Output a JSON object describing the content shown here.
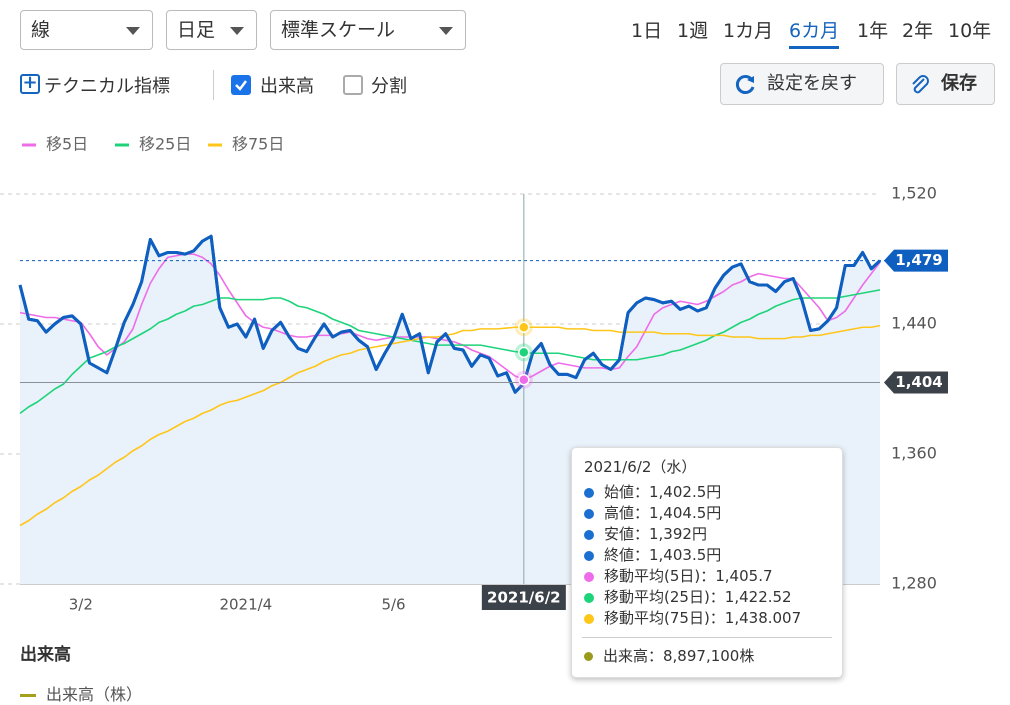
{
  "toolbar": {
    "chart_style": "線",
    "interval": "日足",
    "scale": "標準スケール",
    "periods": [
      "1日",
      "1週",
      "1カ月",
      "6カ月",
      "1年",
      "2年",
      "10年"
    ],
    "active_period": 3,
    "technical": "テクニカル指標",
    "volume_checkbox": {
      "label": "出来高",
      "checked": true
    },
    "split_checkbox": {
      "label": "分割",
      "checked": false
    },
    "reset_button": "設定を戻す",
    "save_button": "保存"
  },
  "chart_data": {
    "type": "line",
    "categories": [
      null,
      null,
      null,
      null,
      null,
      null,
      null,
      "3/2",
      null,
      null,
      null,
      null,
      null,
      null,
      null,
      null,
      null,
      null,
      null,
      null,
      null,
      null,
      null,
      null,
      null,
      null,
      "2021/4",
      null,
      null,
      null,
      null,
      null,
      null,
      null,
      null,
      null,
      null,
      null,
      null,
      null,
      null,
      null,
      null,
      "5/6",
      null,
      null,
      null,
      null,
      null,
      null,
      null,
      null,
      null,
      null,
      null,
      null,
      null,
      null,
      "2021/6/2",
      null,
      null,
      null,
      null,
      null,
      null,
      null,
      null,
      null,
      null,
      null,
      null,
      null,
      null,
      null,
      null,
      null,
      null,
      null,
      null,
      null,
      null,
      null,
      null,
      null,
      null,
      null,
      null,
      null,
      null,
      null,
      null,
      null,
      null,
      null,
      null,
      null,
      null,
      null,
      null,
      null
    ],
    "series": [
      {
        "color": "#0f5fc0",
        "area_color": "#e9f1fa",
        "values": [
          1464,
          1443,
          1442,
          1435,
          1440,
          1444,
          1445,
          1440,
          1416,
          1413,
          1410,
          1425,
          1441,
          1452,
          1466,
          1492,
          1482,
          1484,
          1484,
          1483,
          1485,
          1491,
          1494,
          1450,
          1438,
          1440,
          1432,
          1443,
          1425,
          1436,
          1441,
          1432,
          1425,
          1423,
          1432,
          1440,
          1432,
          1435,
          1436,
          1430,
          1426,
          1412,
          1422,
          1431,
          1446,
          1431,
          1434,
          1410,
          1429,
          1434,
          1425,
          1424,
          1414,
          1421,
          1419,
          1408,
          1410,
          1398,
          1403.5,
          1422,
          1428,
          1415,
          1409,
          1409,
          1407,
          1418,
          1422,
          1415,
          1412,
          1418,
          1447,
          1453,
          1456,
          1455,
          1453,
          1454,
          1449,
          1451,
          1448,
          1450,
          1462,
          1470,
          1475,
          1477,
          1466,
          1464,
          1464,
          1460,
          1466,
          1468,
          1455,
          1436,
          1437,
          1442,
          1450,
          1476,
          1476,
          1484,
          1474,
          1479
        ]
      },
      {
        "name": "移5日",
        "color": "#ee6ce9",
        "values": [
          1447,
          1446,
          1445,
          1444,
          1444,
          1443,
          1442,
          1441,
          1434,
          1426,
          1421,
          1425,
          1429,
          1437,
          1452,
          1465,
          1474,
          1481,
          1482,
          1483,
          1483,
          1481,
          1477,
          1470,
          1461,
          1453,
          1445,
          1441,
          1438,
          1437,
          1435,
          1433,
          1432,
          1432,
          1433,
          1433,
          1433,
          1434,
          1435,
          1433,
          1431,
          1430,
          1431,
          1432,
          1432,
          1432,
          1432,
          1432,
          1431,
          1430,
          1429,
          1427,
          1424,
          1422,
          1420,
          1416,
          1412,
          1408,
          1405.7,
          1408,
          1411,
          1414,
          1416,
          1415,
          1414,
          1413,
          1413,
          1413,
          1412,
          1413,
          1420,
          1426,
          1436,
          1446,
          1450,
          1452,
          1454,
          1453,
          1452,
          1454,
          1457,
          1460,
          1464,
          1466,
          1469,
          1471,
          1470,
          1469,
          1468,
          1468,
          1462,
          1456,
          1450,
          1442,
          1444,
          1448,
          1456,
          1464,
          1471,
          1478
        ]
      },
      {
        "name": "移25日",
        "color": "#1ed47a",
        "values": [
          1385,
          1389,
          1392,
          1396,
          1400,
          1403,
          1409,
          1414,
          1419,
          1421,
          1423,
          1426,
          1428,
          1431,
          1434,
          1437,
          1441,
          1443,
          1446,
          1448,
          1451,
          1452,
          1454,
          1456,
          1456,
          1455,
          1455,
          1455,
          1455,
          1456,
          1456,
          1454,
          1451,
          1450,
          1448,
          1446,
          1443,
          1441,
          1439,
          1436,
          1435,
          1434,
          1433,
          1432,
          1431,
          1430,
          1429,
          1428,
          1427,
          1427,
          1427,
          1427,
          1427,
          1427,
          1426,
          1425,
          1424,
          1423,
          1422.52,
          1422,
          1422,
          1422,
          1422,
          1421,
          1420,
          1419,
          1418,
          1418,
          1418,
          1418,
          1418,
          1418,
          1419,
          1420,
          1421,
          1423,
          1424,
          1426,
          1428,
          1430,
          1433,
          1435,
          1438,
          1441,
          1443,
          1446,
          1448,
          1451,
          1453,
          1455,
          1456,
          1456,
          1456,
          1456,
          1456,
          1457,
          1458,
          1459,
          1460,
          1461
        ]
      },
      {
        "name": "移75日",
        "color": "#ffc61a",
        "values": [
          1316,
          1319,
          1323,
          1326,
          1330,
          1333,
          1337,
          1340,
          1344,
          1347,
          1351,
          1355,
          1358,
          1362,
          1365,
          1369,
          1372,
          1374,
          1377,
          1380,
          1382,
          1385,
          1387,
          1390,
          1392,
          1393,
          1395,
          1397,
          1399,
          1402,
          1404,
          1407,
          1410,
          1412,
          1414,
          1417,
          1419,
          1421,
          1422,
          1424,
          1425,
          1426,
          1427,
          1428,
          1429,
          1430,
          1431,
          1432,
          1432,
          1433,
          1434,
          1436,
          1436,
          1437,
          1437,
          1437,
          1437.5,
          1438,
          1438.007,
          1438,
          1438,
          1438,
          1438,
          1437,
          1437,
          1437,
          1436,
          1436,
          1436,
          1435,
          1435,
          1435,
          1435,
          1435,
          1434,
          1434,
          1434,
          1434,
          1433,
          1433,
          1433,
          1433,
          1432,
          1432,
          1432,
          1431,
          1431,
          1431,
          1431,
          1432,
          1432,
          1433,
          1433,
          1434,
          1435,
          1436,
          1437,
          1438,
          1438,
          1439
        ]
      }
    ],
    "ylim": [
      1280,
      1520
    ],
    "yticks": [
      {
        "value": 1280,
        "label": "1,280"
      },
      {
        "value": 1360,
        "label": "1,360"
      },
      {
        "value": 1440,
        "label": "1,440"
      },
      {
        "value": 1520,
        "label": "1,520"
      }
    ],
    "grid": true,
    "crosshair_at": 58,
    "crosshair_price": {
      "value": 1404,
      "label": "1,404"
    },
    "last_price": {
      "value": 1479,
      "label": "1,479"
    }
  },
  "tooltip": {
    "date": "2021/6/2（水）",
    "items": [
      {
        "text": "始値：1,402.5円",
        "color": "#1a6fd0"
      },
      {
        "text": "高値：1,404.5円",
        "color": "#1a6fd0"
      },
      {
        "text": "安値：1,392円",
        "color": "#1a6fd0"
      },
      {
        "text": "終値：1,403.5円",
        "color": "#1a6fd0"
      },
      {
        "text": "移動平均(5日)：1,405.7",
        "color": "#ee6ce9"
      },
      {
        "text": "移動平均(25日)：1,422.52",
        "color": "#1ed47a"
      },
      {
        "text": "移動平均(75日)：1,438.007",
        "color": "#ffc61a"
      }
    ],
    "volume": {
      "text": "出来高：8,897,100株",
      "color": "#9a9a1e"
    }
  },
  "volume_panel": {
    "title": "出来高",
    "legend": "出来高（株）",
    "color": "#a3a11c"
  }
}
